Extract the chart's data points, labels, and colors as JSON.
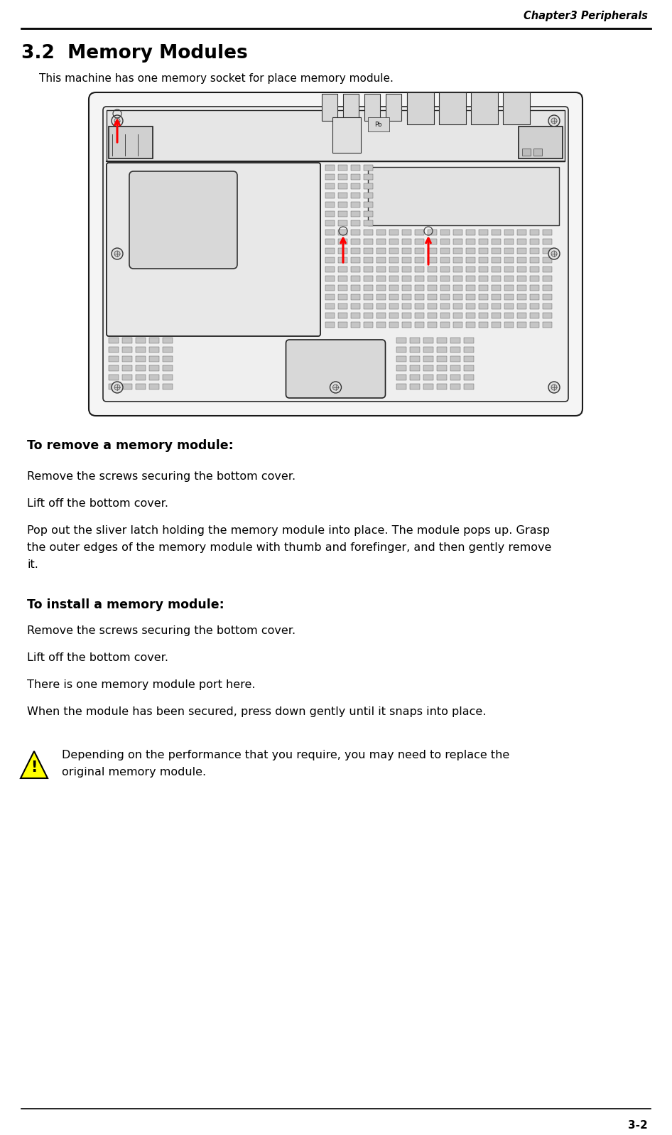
{
  "header_text": "Chapter3 Peripherals",
  "section_title": "3.2  Memory Modules",
  "intro_text": "This machine has one memory socket for place memory module.",
  "remove_heading": "To remove a memory module:",
  "remove_step1": "Remove the screws securing the bottom cover.",
  "remove_step2": "Lift off the bottom cover.",
  "remove_step3_line1": "Pop out the sliver latch holding the memory module into place. The module pops up. Grasp",
  "remove_step3_line2": "the outer edges of the memory module with thumb and forefinger, and then gently remove",
  "remove_step3_line3": "it.",
  "install_heading": "To install a memory module:",
  "install_step1": "Remove the screws securing the bottom cover.",
  "install_step2": "Lift off the bottom cover.",
  "install_step3": "There is one memory module port here.",
  "install_step4": "When the module has been secured, press down gently until it snaps into place.",
  "note_line1": "Depending on the performance that you require, you may need to replace the",
  "note_line2": "original memory module.",
  "footer_text": "3-2",
  "bg_color": "#ffffff",
  "text_color": "#000000",
  "line_color": "#000000",
  "warn_fill": "#ffff00",
  "warn_edge": "#000000",
  "warn_symbol_color": "#000000"
}
